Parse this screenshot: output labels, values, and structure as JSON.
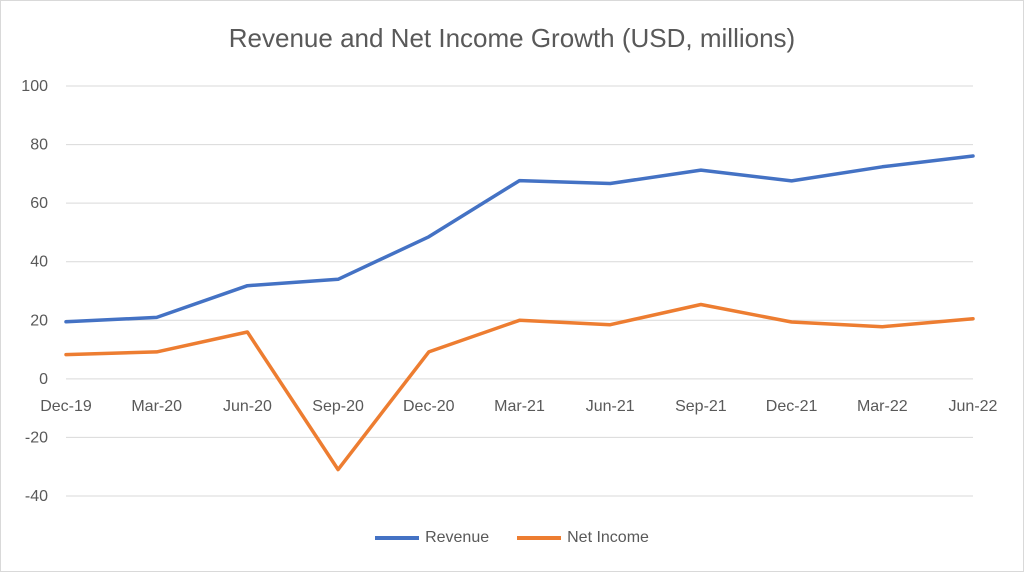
{
  "chart_data": {
    "type": "line",
    "title": "Revenue and Net Income Growth (USD, millions)",
    "categories": [
      "Dec-19",
      "Mar-20",
      "Jun-20",
      "Sep-20",
      "Dec-20",
      "Mar-21",
      "Jun-21",
      "Sep-21",
      "Dec-21",
      "Mar-22",
      "Jun-22"
    ],
    "ylim": [
      -40,
      100
    ],
    "yticks": [
      -40,
      -20,
      0,
      20,
      40,
      60,
      80,
      100
    ],
    "grid": true,
    "legend_position": "bottom",
    "series": [
      {
        "name": "Revenue",
        "color": "#4472C4",
        "values": [
          19.5,
          21,
          31.8,
          34,
          48.5,
          67.7,
          66.7,
          71.3,
          67.6,
          72.4,
          76.1
        ]
      },
      {
        "name": "Net Income",
        "color": "#ED7D31",
        "values": [
          8.3,
          9.2,
          16,
          -31,
          9.2,
          20,
          18.5,
          25.4,
          19.4,
          17.8,
          20.5
        ]
      }
    ]
  }
}
